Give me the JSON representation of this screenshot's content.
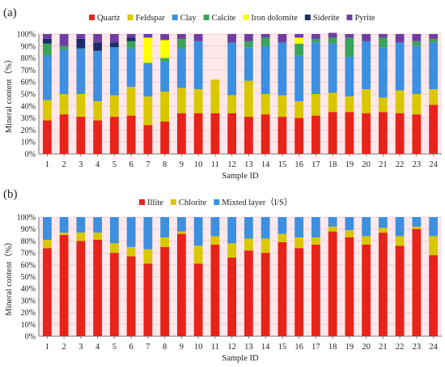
{
  "chart_data": [
    {
      "panel": "(a)",
      "type": "bar",
      "stacked": true,
      "categories": [
        "1",
        "2",
        "3",
        "4",
        "5",
        "6",
        "7",
        "8",
        "9",
        "10",
        "11",
        "12",
        "13",
        "14",
        "15",
        "16",
        "17",
        "18",
        "19",
        "20",
        "21",
        "22",
        "23",
        "24"
      ],
      "xlabel": "Sample ID",
      "ylabel": "Mineral content（%）",
      "ylim": [
        0,
        100
      ],
      "yticks": [
        "0%",
        "10%",
        "20%",
        "30%",
        "40%",
        "50%",
        "60%",
        "70%",
        "80%",
        "90%",
        "100%"
      ],
      "legend_position": "top",
      "series": [
        {
          "name": "Quartz",
          "color": "#e8231a",
          "values": [
            28,
            33,
            31,
            28,
            31,
            32,
            24,
            27,
            34,
            34,
            34,
            34,
            31,
            33,
            31,
            30,
            32,
            35,
            35,
            34,
            35,
            34,
            33,
            41
          ]
        },
        {
          "name": "Feldspar",
          "color": "#d9c700",
          "values": [
            17,
            17,
            19,
            16,
            18,
            24,
            24,
            25,
            21,
            20,
            28,
            15,
            30,
            17,
            18,
            14,
            18,
            16,
            13,
            20,
            12,
            19,
            17,
            13
          ]
        },
        {
          "name": "Clay",
          "color": "#3d8fe0",
          "values": [
            37,
            37,
            38,
            42,
            40,
            32,
            28,
            25,
            33,
            40,
            0,
            44,
            28,
            40,
            44,
            38,
            43,
            41,
            33,
            40,
            42,
            40,
            40,
            39
          ]
        },
        {
          "name": "Calcite",
          "color": "#3aa35a",
          "values": [
            10,
            3,
            0,
            0,
            0,
            6,
            0,
            3,
            8,
            0,
            0,
            0,
            5,
            7,
            0,
            10,
            3,
            5,
            16,
            0,
            8,
            0,
            4,
            3
          ]
        },
        {
          "name": "Iron dolomite",
          "color": "#ffff00",
          "values": [
            0,
            0,
            0,
            0,
            0,
            0,
            21,
            15,
            0,
            0,
            0,
            0,
            0,
            0,
            0,
            5,
            0,
            0,
            0,
            0,
            0,
            0,
            0,
            0
          ]
        },
        {
          "name": "Siderite",
          "color": "#1a2b6b",
          "values": [
            4,
            0,
            8,
            7,
            4,
            3,
            0,
            0,
            0,
            0,
            0,
            0,
            0,
            0,
            0,
            0,
            0,
            0,
            0,
            0,
            0,
            0,
            0,
            0
          ]
        },
        {
          "name": "Pyrite",
          "color": "#6e3ea0",
          "values": [
            4,
            10,
            4,
            7,
            7,
            3,
            3,
            5,
            4,
            6,
            0,
            7,
            6,
            3,
            7,
            3,
            4,
            4,
            3,
            6,
            3,
            7,
            6,
            4
          ]
        }
      ]
    },
    {
      "panel": "(b)",
      "type": "bar",
      "stacked": true,
      "categories": [
        "1",
        "2",
        "3",
        "4",
        "5",
        "6",
        "7",
        "8",
        "9",
        "10",
        "11",
        "12",
        "13",
        "14",
        "15",
        "16",
        "17",
        "18",
        "19",
        "20",
        "21",
        "22",
        "23",
        "24"
      ],
      "xlabel": "Sample ID",
      "ylabel": "Mineral content（%）",
      "ylim": [
        0,
        100
      ],
      "yticks": [
        "0%",
        "10%",
        "20%",
        "30%",
        "40%",
        "50%",
        "60%",
        "70%",
        "80%",
        "90%",
        "100%"
      ],
      "legend_position": "top",
      "series": [
        {
          "name": "Illite",
          "color": "#e8231a",
          "values": [
            74,
            85,
            80,
            81,
            70,
            67,
            61,
            75,
            86,
            61,
            77,
            66,
            72,
            70,
            79,
            74,
            77,
            88,
            83,
            77,
            87,
            76,
            90,
            68
          ]
        },
        {
          "name": "Chlorite",
          "color": "#d9c700",
          "values": [
            7,
            2,
            7,
            6,
            8,
            8,
            12,
            8,
            2,
            15,
            7,
            12,
            10,
            12,
            7,
            9,
            6,
            4,
            6,
            7,
            4,
            8,
            2,
            16
          ]
        },
        {
          "name": "Mixted layer（I/S）",
          "color": "#3d8fe0",
          "values": [
            19,
            13,
            13,
            13,
            22,
            25,
            27,
            17,
            12,
            24,
            16,
            22,
            18,
            18,
            14,
            17,
            17,
            8,
            11,
            16,
            9,
            16,
            8,
            16
          ]
        }
      ]
    }
  ]
}
